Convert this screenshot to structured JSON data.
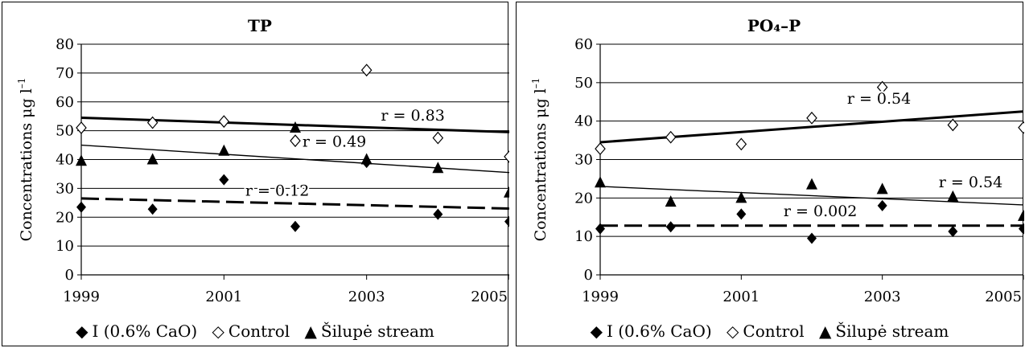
{
  "chart_data": [
    {
      "type": "scatter",
      "title": "TP",
      "ylabel": "Concentrations μg l",
      "ylabel_sup": "–1",
      "xlim": [
        1999,
        2005
      ],
      "ylim": [
        0,
        80
      ],
      "xticks": [
        1999,
        2001,
        2003,
        2005
      ],
      "yticks": [
        0,
        10,
        20,
        30,
        40,
        50,
        60,
        70,
        80
      ],
      "grid": "horizontal",
      "legend_position": "bottom",
      "x": [
        1999,
        2000,
        2001,
        2002,
        2003,
        2004,
        2005
      ],
      "series": [
        {
          "name": "I (0.6% CaO)",
          "marker": "filled-diamond",
          "values": [
            23.5,
            22.8,
            33,
            16.8,
            39,
            21,
            18.5
          ],
          "trendline": {
            "style": "dashed",
            "start": [
              1999,
              26.5
            ],
            "end": [
              2005,
              23
            ]
          }
        },
        {
          "name": "Control",
          "marker": "open-diamond",
          "values": [
            51,
            52.8,
            53.2,
            46.5,
            71,
            47.5,
            41
          ],
          "trendline": {
            "style": "thick",
            "start": [
              1999,
              54.5
            ],
            "end": [
              2005,
              49.5
            ]
          }
        },
        {
          "name": "Šilupė stream",
          "marker": "filled-triangle",
          "values": [
            39.5,
            40,
            43,
            51,
            40,
            37,
            28.5
          ],
          "trendline": {
            "style": "thin",
            "start": [
              1999,
              45
            ],
            "end": [
              2005,
              35.5
            ]
          }
        }
      ],
      "annotations": [
        {
          "text": "r = 0.83",
          "x": 2003.2,
          "y": 53.5
        },
        {
          "text": "r = 0.49",
          "x": 2002.1,
          "y": 44.5
        },
        {
          "text": "r = 0.12",
          "x": 2001.3,
          "y": 27.5
        }
      ]
    },
    {
      "type": "scatter",
      "title": "PO₄–P",
      "ylabel": "Concentrations μg l",
      "ylabel_sup": "–1",
      "xlim": [
        1999,
        2005
      ],
      "ylim": [
        0,
        60
      ],
      "xticks": [
        1999,
        2001,
        2003,
        2005
      ],
      "yticks": [
        0,
        10,
        20,
        30,
        40,
        50,
        60
      ],
      "grid": "horizontal",
      "legend_position": "bottom",
      "x": [
        1999,
        2000,
        2001,
        2002,
        2003,
        2004,
        2005
      ],
      "series": [
        {
          "name": "I (0.6% CaO)",
          "marker": "filled-diamond",
          "values": [
            12,
            12.5,
            15.8,
            9.5,
            18,
            11.3,
            12
          ],
          "trendline": {
            "style": "dashed",
            "start": [
              1999,
              12.8
            ],
            "end": [
              2005,
              12.8
            ]
          }
        },
        {
          "name": "Control",
          "marker": "open-diamond",
          "values": [
            32.8,
            35.8,
            34,
            40.8,
            48.8,
            39,
            38.3
          ],
          "trendline": {
            "style": "thick",
            "start": [
              1999,
              34.5
            ],
            "end": [
              2005,
              42.5
            ]
          }
        },
        {
          "name": "Šilupė stream",
          "marker": "filled-triangle",
          "values": [
            24,
            19,
            20,
            23.5,
            22.3,
            20.3,
            15.3
          ],
          "trendline": {
            "style": "thin",
            "start": [
              1999,
              23
            ],
            "end": [
              2005,
              18.2
            ]
          }
        }
      ],
      "annotations": [
        {
          "text": "r = 0.54",
          "x": 2002.5,
          "y": 44.5
        },
        {
          "text": "r = 0.54",
          "x": 2003.8,
          "y": 22.8
        },
        {
          "text": "r = 0.002",
          "x": 2001.6,
          "y": 15.3
        }
      ]
    }
  ]
}
